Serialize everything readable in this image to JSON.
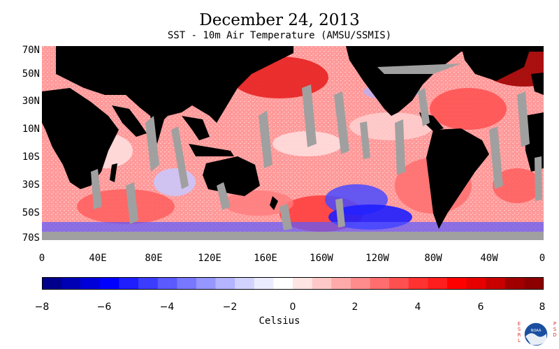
{
  "figure": {
    "title": "December 24, 2013",
    "subtitle": "SST - 10m Air Temperature (AMSU/SSMIS)",
    "lat_labels": [
      "70N",
      "50N",
      "30N",
      "10N",
      "10S",
      "30S",
      "50S",
      "70S"
    ],
    "lon_labels": [
      "0",
      "40E",
      "80E",
      "120E",
      "160E",
      "160W",
      "120W",
      "80W",
      "40W",
      "0"
    ],
    "colorbar": {
      "ticks": [
        "−8",
        "−6",
        "−4",
        "−2",
        "0",
        "2",
        "4",
        "6",
        "8"
      ],
      "units": "Celsius",
      "range": [
        -8,
        8
      ],
      "colors": [
        "#00008c",
        "#0000b4",
        "#0000d9",
        "#0000ff",
        "#1e1eff",
        "#3c3cff",
        "#5a5aff",
        "#7878ff",
        "#9696ff",
        "#b4b4ff",
        "#d2d2ff",
        "#ececff",
        "#ffffff",
        "#ffe4e4",
        "#ffc8c8",
        "#ffaaaa",
        "#ff8c8c",
        "#ff6e6e",
        "#ff5050",
        "#ff3232",
        "#ff1e1e",
        "#ff0000",
        "#e60000",
        "#c80000",
        "#a00000",
        "#8c0000"
      ]
    },
    "colors": {
      "land": "#000000",
      "no_data": "#a0a0a0",
      "warm": "#ff4040",
      "cool": "#4040ff"
    },
    "logo": {
      "left_text": "ESRL",
      "right_text": "PSD",
      "center": "NOAA"
    }
  }
}
